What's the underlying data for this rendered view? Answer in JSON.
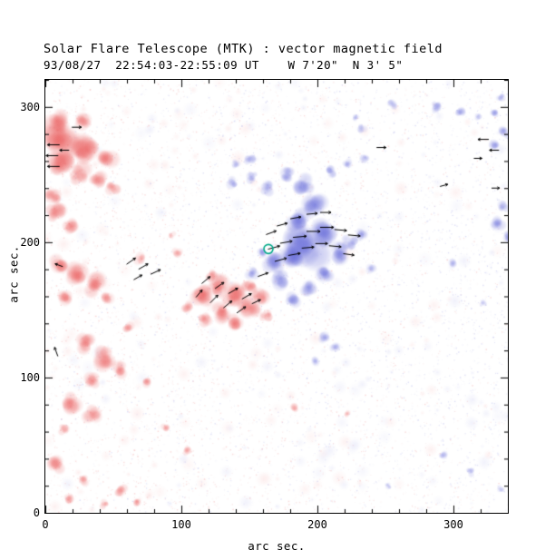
{
  "chart_data": {
    "type": "heatmap",
    "title": "Solar Flare Telescope (MTK) : vector magnetic field",
    "subtitle": "93/08/27  22:54:03-22:55:09 UT    W 7'20\"  N 3' 5\"",
    "xlabel": "arc sec.",
    "ylabel": "arc sec.",
    "xlim": [
      0,
      340
    ],
    "ylim": [
      0,
      320
    ],
    "xticks": [
      0,
      100,
      200,
      300
    ],
    "yticks": [
      0,
      100,
      200,
      300
    ],
    "minor_tick": 20,
    "colors": {
      "negative_polarity_red": "#e85050",
      "positive_polarity_blue": "#5f64d7",
      "marker": "#00a888",
      "vector": "#000000",
      "frame": "#000000",
      "background": "#ffffff"
    },
    "marker": {
      "x": 164,
      "y": 195,
      "r": 5
    },
    "red_blobs": [
      [
        12,
        277,
        16,
        0.75
      ],
      [
        30,
        268,
        13,
        0.7
      ],
      [
        45,
        262,
        9,
        0.55
      ],
      [
        10,
        258,
        10,
        0.7
      ],
      [
        25,
        250,
        9,
        0.6
      ],
      [
        38,
        247,
        7,
        0.5
      ],
      [
        8,
        290,
        9,
        0.6
      ],
      [
        28,
        288,
        7,
        0.5
      ],
      [
        50,
        240,
        6,
        0.45
      ],
      [
        5,
        232,
        8,
        0.55
      ],
      [
        8,
        222,
        9,
        0.6
      ],
      [
        18,
        212,
        7,
        0.5
      ],
      [
        10,
        185,
        8,
        0.55
      ],
      [
        22,
        175,
        10,
        0.65
      ],
      [
        35,
        168,
        9,
        0.6
      ],
      [
        14,
        160,
        7,
        0.5
      ],
      [
        45,
        160,
        6,
        0.4
      ],
      [
        60,
        138,
        5,
        0.4
      ],
      [
        70,
        188,
        5,
        0.35
      ],
      [
        30,
        124,
        9,
        0.6
      ],
      [
        42,
        114,
        11,
        0.65
      ],
      [
        55,
        106,
        7,
        0.5
      ],
      [
        35,
        98,
        7,
        0.5
      ],
      [
        20,
        82,
        9,
        0.55
      ],
      [
        34,
        74,
        7,
        0.5
      ],
      [
        14,
        62,
        5,
        0.4
      ],
      [
        8,
        35,
        7,
        0.5
      ],
      [
        28,
        24,
        5,
        0.4
      ],
      [
        18,
        10,
        5,
        0.4
      ],
      [
        44,
        6,
        4,
        0.35
      ],
      [
        56,
        16,
        5,
        0.45
      ],
      [
        68,
        8,
        4,
        0.4
      ],
      [
        75,
        97,
        5,
        0.4
      ],
      [
        88,
        62,
        4,
        0.35
      ],
      [
        104,
        46,
        4,
        0.35
      ],
      [
        115,
        162,
        10,
        0.7
      ],
      [
        127,
        167,
        9,
        0.65
      ],
      [
        138,
        160,
        10,
        0.7
      ],
      [
        150,
        152,
        9,
        0.65
      ],
      [
        128,
        148,
        8,
        0.6
      ],
      [
        140,
        140,
        7,
        0.55
      ],
      [
        117,
        143,
        7,
        0.5
      ],
      [
        158,
        160,
        7,
        0.5
      ],
      [
        150,
        168,
        6,
        0.5
      ],
      [
        105,
        152,
        6,
        0.45
      ],
      [
        122,
        176,
        5,
        0.4
      ],
      [
        162,
        146,
        5,
        0.45
      ],
      [
        97,
        192,
        4,
        0.35
      ],
      [
        93,
        205,
        3,
        0.3
      ],
      [
        183,
        78,
        4,
        0.3
      ],
      [
        222,
        73,
        3,
        0.25
      ]
    ],
    "blue_blobs": [
      [
        192,
        197,
        16,
        0.8
      ],
      [
        204,
        206,
        12,
        0.75
      ],
      [
        181,
        188,
        10,
        0.7
      ],
      [
        186,
        216,
        10,
        0.7
      ],
      [
        198,
        228,
        9,
        0.65
      ],
      [
        190,
        243,
        8,
        0.6
      ],
      [
        177,
        250,
        7,
        0.55
      ],
      [
        163,
        240,
        7,
        0.5
      ],
      [
        152,
        248,
        5,
        0.45
      ],
      [
        138,
        244,
        5,
        0.4
      ],
      [
        214,
        192,
        9,
        0.65
      ],
      [
        224,
        200,
        7,
        0.55
      ],
      [
        232,
        206,
        5,
        0.45
      ],
      [
        240,
        180,
        4,
        0.3
      ],
      [
        172,
        172,
        8,
        0.6
      ],
      [
        182,
        158,
        7,
        0.5
      ],
      [
        194,
        166,
        7,
        0.55
      ],
      [
        205,
        178,
        8,
        0.6
      ],
      [
        168,
        185,
        8,
        0.65
      ],
      [
        158,
        192,
        5,
        0.45
      ],
      [
        152,
        178,
        5,
        0.45
      ],
      [
        150,
        262,
        5,
        0.4
      ],
      [
        140,
        258,
        4,
        0.35
      ],
      [
        210,
        252,
        5,
        0.45
      ],
      [
        222,
        258,
        4,
        0.35
      ],
      [
        235,
        262,
        4,
        0.35
      ],
      [
        233,
        284,
        4,
        0.3
      ],
      [
        205,
        130,
        5,
        0.4
      ],
      [
        213,
        122,
        4,
        0.35
      ],
      [
        198,
        112,
        4,
        0.3
      ],
      [
        333,
        214,
        6,
        0.5
      ],
      [
        340,
        204,
        5,
        0.45
      ],
      [
        337,
        227,
        5,
        0.4
      ],
      [
        330,
        272,
        5,
        0.4
      ],
      [
        338,
        281,
        5,
        0.45
      ],
      [
        344,
        266,
        4,
        0.35
      ],
      [
        288,
        300,
        5,
        0.45
      ],
      [
        305,
        296,
        4,
        0.4
      ],
      [
        318,
        293,
        3,
        0.3
      ],
      [
        330,
        296,
        4,
        0.4
      ],
      [
        335,
        308,
        4,
        0.35
      ],
      [
        255,
        302,
        4,
        0.35
      ],
      [
        228,
        292,
        3,
        0.3
      ],
      [
        300,
        185,
        4,
        0.3
      ],
      [
        322,
        155,
        3,
        0.25
      ],
      [
        345,
        140,
        3,
        0.25
      ],
      [
        292,
        42,
        4,
        0.3
      ],
      [
        312,
        30,
        4,
        0.35
      ],
      [
        252,
        20,
        3,
        0.3
      ],
      [
        335,
        18,
        3,
        0.25
      ]
    ],
    "vectors": [
      [
        6,
        272,
        180,
        9
      ],
      [
        5,
        264,
        180,
        9
      ],
      [
        6,
        256,
        180,
        9
      ],
      [
        14,
        268,
        180,
        7
      ],
      [
        23,
        285,
        0,
        7
      ],
      [
        10,
        183,
        160,
        6
      ],
      [
        63,
        186,
        35,
        8
      ],
      [
        72,
        182,
        30,
        8
      ],
      [
        81,
        178,
        25,
        8
      ],
      [
        68,
        174,
        30,
        7
      ],
      [
        118,
        172,
        40,
        8
      ],
      [
        128,
        168,
        35,
        8
      ],
      [
        138,
        164,
        30,
        8
      ],
      [
        148,
        160,
        30,
        8
      ],
      [
        124,
        158,
        45,
        8
      ],
      [
        134,
        154,
        40,
        8
      ],
      [
        144,
        150,
        35,
        8
      ],
      [
        155,
        156,
        25,
        7
      ],
      [
        113,
        162,
        50,
        7
      ],
      [
        160,
        176,
        20,
        8
      ],
      [
        168,
        196,
        15,
        9
      ],
      [
        177,
        200,
        10,
        9
      ],
      [
        187,
        204,
        5,
        10
      ],
      [
        197,
        208,
        0,
        10
      ],
      [
        207,
        211,
        0,
        10
      ],
      [
        217,
        209,
        -5,
        9
      ],
      [
        227,
        205,
        -5,
        9
      ],
      [
        173,
        187,
        15,
        9
      ],
      [
        183,
        191,
        10,
        9
      ],
      [
        193,
        196,
        5,
        9
      ],
      [
        203,
        199,
        0,
        9
      ],
      [
        213,
        197,
        -5,
        9
      ],
      [
        223,
        191,
        -8,
        8
      ],
      [
        166,
        207,
        20,
        8
      ],
      [
        174,
        213,
        15,
        8
      ],
      [
        184,
        218,
        10,
        8
      ],
      [
        196,
        221,
        5,
        8
      ],
      [
        206,
        222,
        0,
        8
      ],
      [
        247,
        270,
        0,
        7
      ],
      [
        293,
        242,
        15,
        6
      ],
      [
        322,
        276,
        180,
        8
      ],
      [
        330,
        268,
        180,
        7
      ],
      [
        318,
        262,
        0,
        6
      ],
      [
        331,
        240,
        0,
        6
      ],
      [
        8,
        119,
        110,
        7
      ]
    ]
  }
}
